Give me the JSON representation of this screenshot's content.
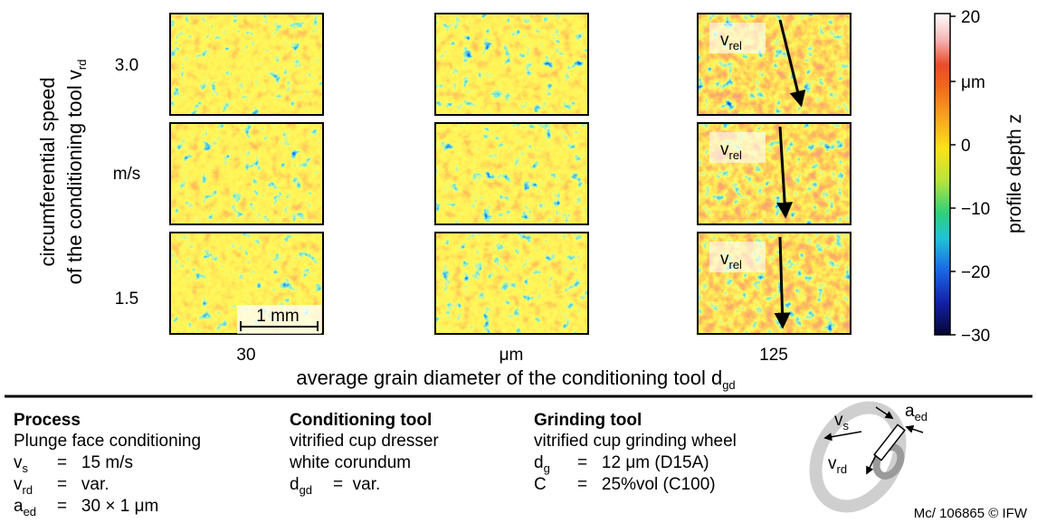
{
  "panels": {
    "row_labels": [
      "3.0",
      "m/s",
      "1.5"
    ],
    "column_labels": [
      "30",
      "μm",
      "125"
    ],
    "y_axis_title": {
      "line1": "circumferential speed",
      "line2": "of the conditioning tool v",
      "line2_sub": "rd"
    },
    "x_axis_title": {
      "text": "average grain diameter of the conditioning tool d",
      "sub": "gd"
    },
    "overlay_label": {
      "text": "v",
      "sub": "rel"
    },
    "scale_bar": "1 mm"
  },
  "colorbar": {
    "title": "profile depth z",
    "ticks": [
      "20",
      "μm",
      "0",
      "−10",
      "−20",
      "−30"
    ]
  },
  "sections": [
    {
      "title": "Process",
      "lines": [
        {
          "text": "Plunge face conditioning"
        },
        {
          "sym": "v",
          "sub": "s",
          "value": "=   15 m/s"
        },
        {
          "sym": "v",
          "sub": "rd",
          "value": "=   var."
        },
        {
          "sym": "a",
          "sub": "ed",
          "value": "=   30 × 1 μm"
        }
      ]
    },
    {
      "title": "Conditioning tool",
      "lines": [
        {
          "text": "vitrified cup dresser"
        },
        {
          "text": "white corundum"
        },
        {
          "sym": "d",
          "sub": "gd",
          "value": "=  var."
        }
      ]
    },
    {
      "title": "Grinding tool",
      "lines": [
        {
          "text": "vitrified cup grinding wheel"
        },
        {
          "sym": "d",
          "sub": "g",
          "value": "=   12 μm (D15A)"
        },
        {
          "sym": "C",
          "value": "=   25%vol (C100)"
        }
      ]
    }
  ],
  "sketch": {
    "v_s": {
      "text": "v",
      "sub": "s"
    },
    "a_ed": {
      "text": "a",
      "sub": "ed"
    },
    "v_rd": {
      "text": "v",
      "sub": "rd"
    }
  },
  "footer": "Mc/ 106865 © IFW"
}
